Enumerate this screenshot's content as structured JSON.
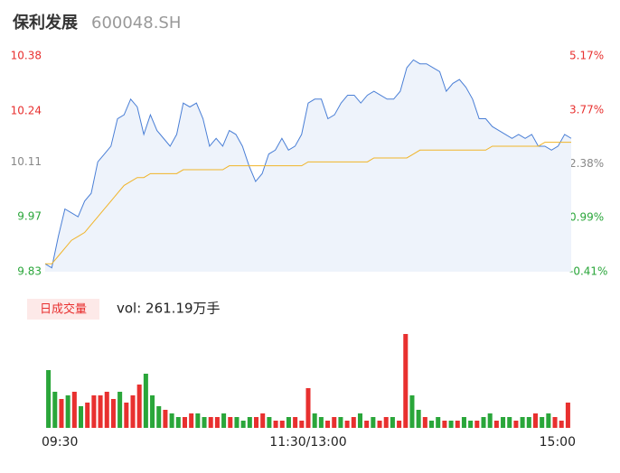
{
  "chart_data": {
    "type": "line",
    "title": "保利发展",
    "subtitle": "600048.SH",
    "legend_label": "日成交量",
    "volume_label": "vol: 261.19万手",
    "series": [
      {
        "name": "price",
        "color": "#4a7fd6",
        "values": [
          9.85,
          9.84,
          9.92,
          9.99,
          9.98,
          9.97,
          10.01,
          10.03,
          10.11,
          10.13,
          10.15,
          10.22,
          10.23,
          10.27,
          10.25,
          10.18,
          10.23,
          10.19,
          10.17,
          10.15,
          10.18,
          10.26,
          10.25,
          10.26,
          10.22,
          10.15,
          10.17,
          10.15,
          10.19,
          10.18,
          10.15,
          10.1,
          10.06,
          10.08,
          10.13,
          10.14,
          10.17,
          10.14,
          10.15,
          10.18,
          10.26,
          10.27,
          10.27,
          10.22,
          10.23,
          10.26,
          10.28,
          10.28,
          10.26,
          10.28,
          10.29,
          10.28,
          10.27,
          10.27,
          10.29,
          10.35,
          10.37,
          10.36,
          10.36,
          10.35,
          10.34,
          10.29,
          10.31,
          10.32,
          10.3,
          10.27,
          10.22,
          10.22,
          10.2,
          10.19,
          10.18,
          10.17,
          10.18,
          10.17,
          10.18,
          10.15,
          10.15,
          10.14,
          10.15,
          10.18,
          10.17
        ]
      },
      {
        "name": "average",
        "color": "#f0b429",
        "values": [
          9.85,
          9.85,
          9.87,
          9.89,
          9.91,
          9.92,
          9.93,
          9.95,
          9.97,
          9.99,
          10.01,
          10.03,
          10.05,
          10.06,
          10.07,
          10.07,
          10.08,
          10.08,
          10.08,
          10.08,
          10.08,
          10.09,
          10.09,
          10.09,
          10.09,
          10.09,
          10.09,
          10.09,
          10.1,
          10.1,
          10.1,
          10.1,
          10.1,
          10.1,
          10.1,
          10.1,
          10.1,
          10.1,
          10.1,
          10.1,
          10.11,
          10.11,
          10.11,
          10.11,
          10.11,
          10.11,
          10.11,
          10.11,
          10.11,
          10.11,
          10.12,
          10.12,
          10.12,
          10.12,
          10.12,
          10.12,
          10.13,
          10.14,
          10.14,
          10.14,
          10.14,
          10.14,
          10.14,
          10.14,
          10.14,
          10.14,
          10.14,
          10.14,
          10.15,
          10.15,
          10.15,
          10.15,
          10.15,
          10.15,
          10.15,
          10.15,
          10.16,
          10.16,
          10.16,
          10.16,
          10.16
        ]
      }
    ],
    "volume": [
      16,
      10,
      8,
      9,
      10,
      6,
      7,
      9,
      9,
      10,
      8,
      10,
      7,
      9,
      12,
      15,
      9,
      6,
      5,
      4,
      3,
      3,
      4,
      4,
      3,
      3,
      3,
      4,
      3,
      3,
      2,
      3,
      3,
      4,
      3,
      2,
      2,
      3,
      3,
      2,
      11,
      4,
      3,
      2,
      3,
      3,
      2,
      3,
      4,
      2,
      3,
      2,
      3,
      3,
      2,
      26,
      9,
      5,
      3,
      2,
      3,
      2,
      2,
      2,
      3,
      2,
      2,
      3,
      4,
      2,
      3,
      3,
      2,
      3,
      3,
      4,
      3,
      4,
      3,
      2,
      7
    ],
    "volume_colors": [
      "#2aa63a",
      "#2aa63a",
      "#e8302f",
      "#2aa63a",
      "#e8302f",
      "#2aa63a",
      "#e8302f",
      "#e8302f",
      "#e8302f",
      "#e8302f",
      "#e8302f",
      "#2aa63a",
      "#e8302f",
      "#e8302f",
      "#e8302f",
      "#2aa63a",
      "#2aa63a",
      "#2aa63a",
      "#e8302f",
      "#2aa63a",
      "#2aa63a",
      "#e8302f",
      "#e8302f",
      "#2aa63a",
      "#2aa63a",
      "#e8302f",
      "#e8302f",
      "#2aa63a",
      "#e8302f",
      "#2aa63a",
      "#2aa63a",
      "#2aa63a",
      "#e8302f",
      "#e8302f",
      "#2aa63a",
      "#e8302f",
      "#e8302f",
      "#2aa63a",
      "#e8302f",
      "#e8302f",
      "#e8302f",
      "#2aa63a",
      "#2aa63a",
      "#e8302f",
      "#e8302f",
      "#2aa63a",
      "#e8302f",
      "#e8302f",
      "#2aa63a",
      "#e8302f",
      "#2aa63a",
      "#e8302f",
      "#e8302f",
      "#2aa63a",
      "#e8302f",
      "#e8302f",
      "#2aa63a",
      "#2aa63a",
      "#e8302f",
      "#2aa63a",
      "#2aa63a",
      "#e8302f",
      "#2aa63a",
      "#e8302f",
      "#2aa63a",
      "#2aa63a",
      "#e8302f",
      "#2aa63a",
      "#2aa63a",
      "#e8302f",
      "#2aa63a",
      "#2aa63a",
      "#e8302f",
      "#2aa63a",
      "#2aa63a",
      "#e8302f",
      "#2aa63a",
      "#2aa63a",
      "#e8302f",
      "#e8302f",
      "#e8302f"
    ],
    "volume_lim": [
      0,
      26
    ],
    "ylim": [
      9.83,
      10.38
    ],
    "yticks": [
      9.83,
      9.97,
      10.11,
      10.24,
      10.38
    ],
    "y2lim": [
      -0.41,
      5.17
    ],
    "y2ticks": [
      {
        "value": -0.41,
        "label": "-0.41%"
      },
      {
        "value": 0.99,
        "label": "0.99%"
      },
      {
        "value": 2.38,
        "label": "2.38%"
      },
      {
        "value": 3.77,
        "label": "3.77%"
      },
      {
        "value": 5.17,
        "label": "5.17%"
      }
    ],
    "tick_colors": [
      "#2aa63a",
      "#2aa63a",
      "#888888",
      "#e8302f",
      "#e8302f"
    ],
    "xticks": [
      {
        "value": 0,
        "label": "09:30"
      },
      {
        "value": 40,
        "label": "11:30/13:00"
      },
      {
        "value": 80,
        "label": "15:00"
      }
    ],
    "area_color": "#eef3fb"
  }
}
